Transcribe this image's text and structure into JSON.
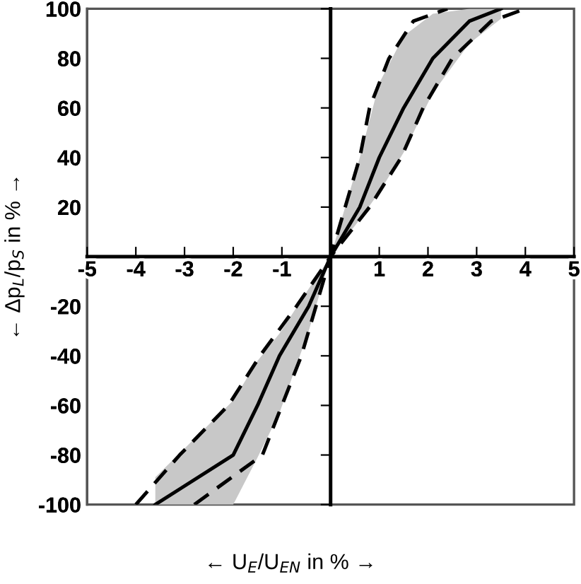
{
  "chart_data": {
    "type": "line",
    "xlabel": "← U$_{E}$/U$_{EN}$ in % →",
    "ylabel": "← Δp$_{L}$/p$_{S}$ in % →",
    "xlim": [
      -5,
      5
    ],
    "ylim": [
      -100,
      100
    ],
    "xticks": [
      -5,
      -4,
      -3,
      -2,
      -1,
      1,
      2,
      3,
      4,
      5
    ],
    "yticks": [
      -100,
      -80,
      -60,
      -40,
      -20,
      20,
      40,
      60,
      80,
      100
    ],
    "grid": false,
    "legend": false,
    "series": [
      {
        "color": "#000000",
        "line_style": "dashed",
        "x": [
          -4.0,
          -3.1,
          -2.1,
          -1.45,
          -0.7,
          0,
          0.3,
          0.6,
          0.8,
          1.2,
          1.7,
          2.4
        ],
        "values": [
          -100,
          -80,
          -60,
          -40,
          -20,
          0,
          20,
          40,
          60,
          80,
          95,
          100
        ]
      },
      {
        "color": "#000000",
        "line_style": "solid",
        "x": [
          -3.6,
          -2.0,
          -1.5,
          -1.05,
          -0.45,
          0,
          0.6,
          1.0,
          1.5,
          2.1,
          2.85,
          3.5
        ],
        "values": [
          -100,
          -80,
          -60,
          -40,
          -20,
          0,
          20,
          40,
          60,
          80,
          95,
          100
        ],
        "lower": [
          -100,
          -100,
          -81,
          -63,
          -30,
          0,
          15,
          26,
          42,
          66,
          86,
          96
        ],
        "upper": [
          -89,
          -58,
          -42,
          -31,
          -13,
          0,
          40,
          70,
          89,
          98,
          100,
          100
        ]
      },
      {
        "color": "#000000",
        "line_style": "dashed",
        "x": [
          -2.8,
          -1.4,
          -1.0,
          -0.6,
          -0.3,
          0,
          0.8,
          1.45,
          1.9,
          2.5,
          3.3,
          4.0
        ],
        "values": [
          -100,
          -80,
          -60,
          -40,
          -20,
          0,
          20,
          40,
          60,
          80,
          95,
          100
        ]
      }
    ]
  }
}
